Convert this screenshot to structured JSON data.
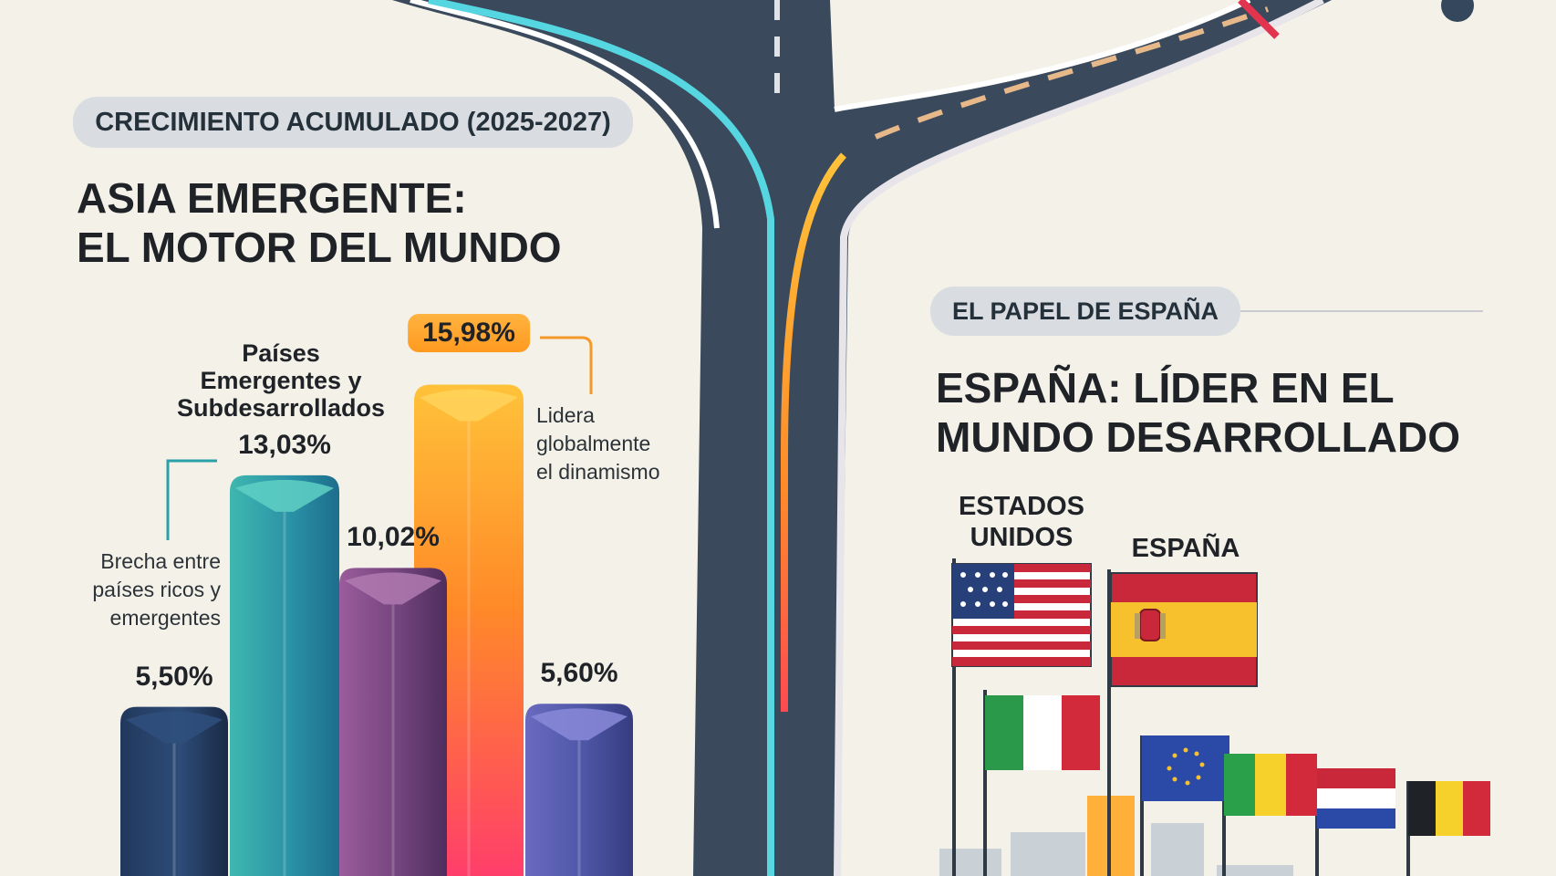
{
  "left_panel": {
    "tag": "CRECIMIENTO ACUMULADO (2025-2027)",
    "title_line1": "ASIA EMERGENTE:",
    "title_line2": "EL MOTOR DEL MUNDO",
    "category_label_lines": [
      "Países",
      "Emergentes y",
      "Subdesarrollados"
    ],
    "annotation_gap_lines": [
      "Brecha entre",
      "países ricos y",
      "emergentes"
    ],
    "annotation_lead_lines": [
      "Lidera",
      "globalmente",
      "el dinamismo"
    ]
  },
  "right_panel": {
    "tag": "EL PAPEL DE ESPAÑA",
    "title_line1": "ESPAÑA: LÍDER EN EL",
    "title_line2": "MUNDO DESARROLLADO",
    "flag_us_label_lines": [
      "ESTADOS",
      "UNIDOS"
    ],
    "flag_es_label": "ESPAÑA"
  },
  "chart_data": {
    "type": "bar",
    "title": "",
    "values": [
      5.5,
      13.03,
      10.02,
      15.98,
      5.6
    ],
    "value_labels": [
      "5,50%",
      "13,03%",
      "10,02%",
      "15,98%",
      "5,60%"
    ],
    "ylim": [
      0,
      16.5
    ],
    "grid": false
  },
  "colors": {
    "bar1": "#2a4670",
    "bar2": "#2aa0a8",
    "bar3": "#7a4a8a",
    "bar4": "#ff7a30",
    "bar5": "#5a5aa8",
    "road": "#3c4c5e",
    "background": "#f3f1e8"
  }
}
